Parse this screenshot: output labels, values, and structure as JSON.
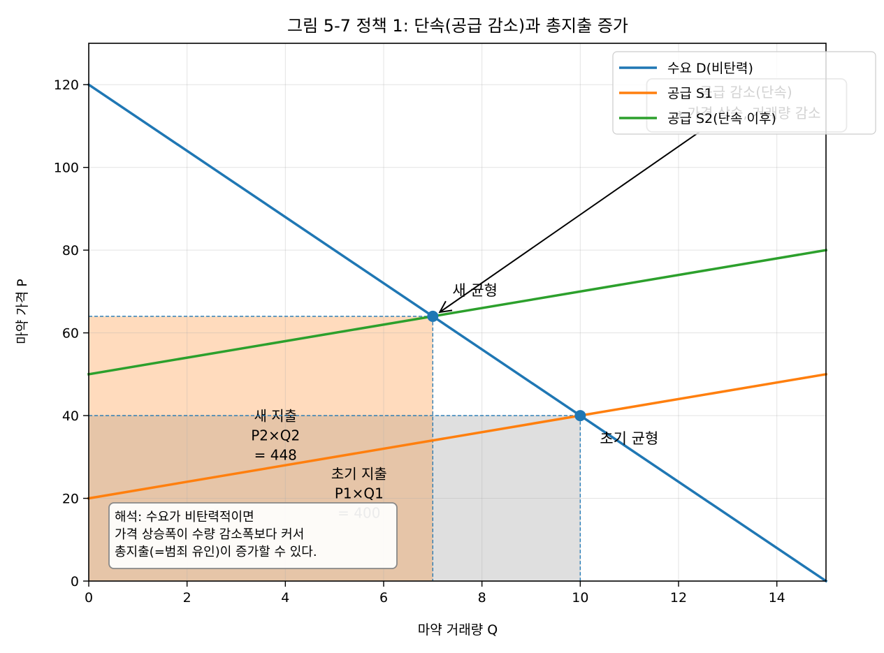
{
  "chart_data": {
    "type": "line",
    "title": "그림 5-7  정책 1: 단속(공급 감소)과 총지출 증가",
    "xlabel": "마약 거래량 Q",
    "ylabel": "마약 가격 P",
    "xlim": [
      0,
      15
    ],
    "ylim": [
      0,
      130
    ],
    "xticks": [
      0,
      2,
      4,
      6,
      8,
      10,
      12,
      14
    ],
    "yticks": [
      0,
      20,
      40,
      60,
      80,
      100,
      120
    ],
    "grid": true,
    "legend_position": "top-right",
    "series": [
      {
        "name": "수요 D(비탄력)",
        "color": "#1f77b4",
        "x": [
          0,
          15
        ],
        "y": [
          120,
          0
        ]
      },
      {
        "name": "공급 S1",
        "color": "#ff7f0e",
        "x": [
          0,
          15
        ],
        "y": [
          20,
          50
        ]
      },
      {
        "name": "공급 S2(단속 이후)",
        "color": "#2ca02c",
        "x": [
          0,
          15
        ],
        "y": [
          50,
          80
        ]
      }
    ],
    "points": [
      {
        "name": "초기 균형",
        "x": 10,
        "y": 40,
        "label": "초기 균형"
      },
      {
        "name": "새 균형",
        "x": 7,
        "y": 64,
        "label": "새 균형"
      }
    ],
    "areas": [
      {
        "name": "new_spending",
        "x0": 0,
        "x1": 7,
        "y0": 0,
        "y1": 64,
        "color": "#ffdbbd",
        "label_lines": [
          "새 지출",
          "P2×Q2",
          "= 448"
        ],
        "label_x": 3.8,
        "label_y": 35
      },
      {
        "name": "initial_spending",
        "x0": 0,
        "x1": 10,
        "y0": 0,
        "y1": 40,
        "color": "#d9d9d9",
        "label_lines": [
          "초기 지출",
          "P1×Q1",
          "= 400"
        ],
        "label_x": 5.5,
        "label_y": 21
      }
    ],
    "annotations": [
      {
        "name": "supply_decrease",
        "lines": [
          "공급 감소(단속)",
          "→ 가격 상승, 거래량 감소"
        ],
        "text_x": 13.4,
        "text_y": 115,
        "arrow_to_x": 7,
        "arrow_to_y": 64
      }
    ],
    "note": [
      "해석: 수요가 비탄력적이면",
      "가격 상승폭이 수량 감소폭보다 커서",
      "총지출(=범죄 유인)이 증가할 수 있다."
    ]
  }
}
